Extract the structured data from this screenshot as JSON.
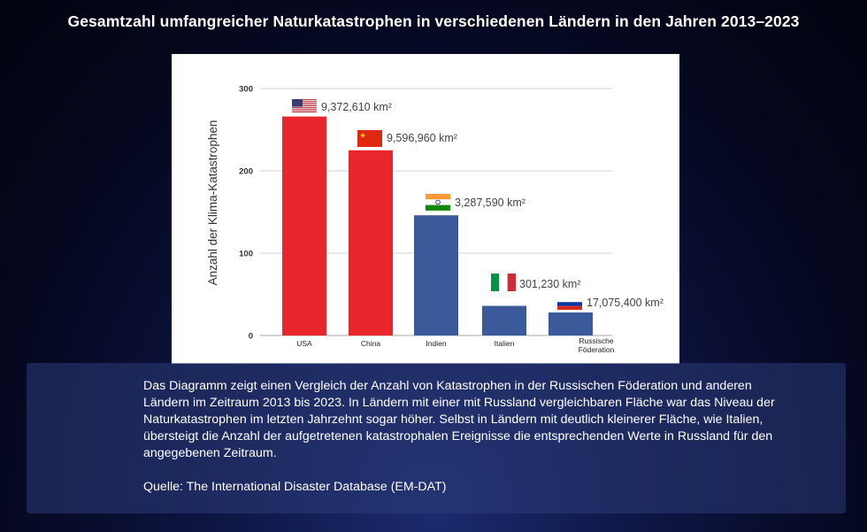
{
  "title": "Gesamtzahl umfangreicher Naturkatastrophen in verschiedenen Ländern in den Jahren 2013–2023",
  "chart_data": {
    "type": "bar",
    "ylabel": "Anzahl der Klima-Katastrophen",
    "xlabel": "",
    "ylim": [
      0,
      300
    ],
    "yticks": [
      "0",
      "100",
      "200",
      "300"
    ],
    "grid": true,
    "categories": [
      "USA",
      "China",
      "Indien",
      "Italien",
      "Russische Föderation"
    ],
    "values": [
      266,
      225,
      146,
      36,
      28
    ],
    "bar_colors": [
      "#e8262b",
      "#e8262b",
      "#3a5a9a",
      "#3a5a9a",
      "#3a5a9a"
    ],
    "annotations": [
      {
        "flag": "usa-flag-icon",
        "text": "9,372,610 km²"
      },
      {
        "flag": "china-flag-icon",
        "text": "9,596,960 km²"
      },
      {
        "flag": "india-flag-icon",
        "text": "3,287,590 km²"
      },
      {
        "flag": "italy-flag-icon",
        "text": "301,230 km²"
      },
      {
        "flag": "russia-flag-icon",
        "text": "17,075,400 km²"
      }
    ]
  },
  "caption": {
    "text": "Das Diagramm zeigt einen Vergleich der Anzahl von Katastrophen in der Russischen Föderation und anderen Ländern im Zeitraum 2013 bis 2023. In Ländern mit einer mit Russland vergleichbaren Fläche war das Niveau der Naturkatastrophen im letzten Jahrzehnt sogar höher. Selbst in Ländern mit deutlich kleinerer Fläche, wie Italien, übersteigt die Anzahl der aufgetretenen katastrophalen Ereignisse die entsprechenden Werte in Russland für den angegebenen Zeitraum.",
    "source": "Quelle: The International Disaster Database (EM-DAT)"
  }
}
